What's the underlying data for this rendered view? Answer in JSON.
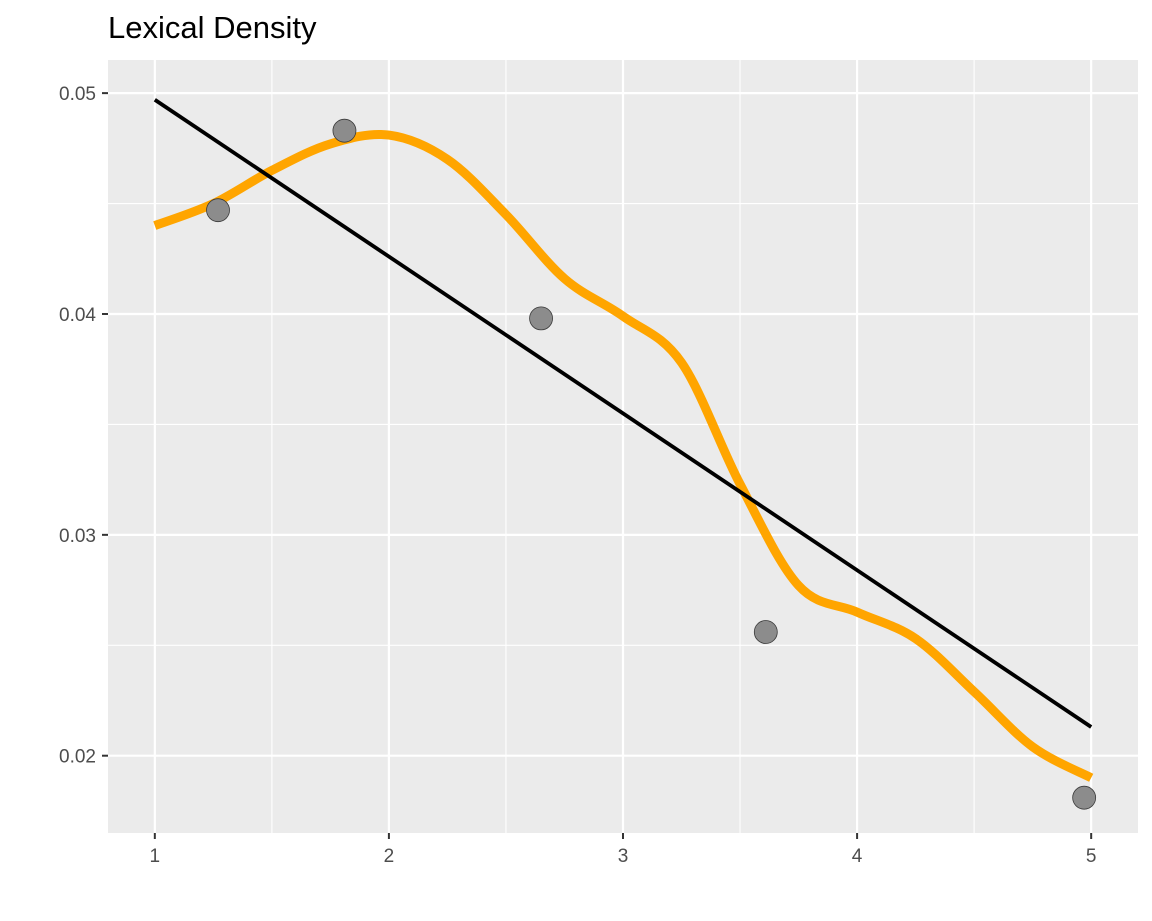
{
  "chart_data": {
    "type": "scatter",
    "title": "Lexical Density",
    "xlabel": "",
    "ylabel": "",
    "xlim": [
      0.8,
      5.2
    ],
    "ylim": [
      0.0165,
      0.0515
    ],
    "grid": true,
    "x_ticks": [
      1,
      2,
      3,
      4,
      5
    ],
    "x_tick_labels": [
      "1",
      "2",
      "3",
      "4",
      "5"
    ],
    "y_ticks": [
      0.02,
      0.03,
      0.04,
      0.05
    ],
    "y_tick_labels": [
      "0.02",
      "0.03",
      "0.04",
      "0.05"
    ],
    "points": [
      {
        "x": 1.27,
        "y": 0.0447
      },
      {
        "x": 1.81,
        "y": 0.0483
      },
      {
        "x": 2.65,
        "y": 0.0398
      },
      {
        "x": 3.61,
        "y": 0.0256
      },
      {
        "x": 4.97,
        "y": 0.0181
      }
    ],
    "linear_fit": {
      "color": "#000000",
      "x": [
        1,
        5
      ],
      "y": [
        0.0497,
        0.0213
      ]
    },
    "smooth_fit": {
      "color": "#FFA500",
      "x": [
        1.0,
        1.25,
        1.5,
        1.75,
        2.0,
        2.25,
        2.5,
        2.75,
        3.0,
        3.25,
        3.5,
        3.75,
        4.0,
        4.25,
        4.5,
        4.75,
        5.0
      ],
      "y": [
        0.044,
        0.045,
        0.0465,
        0.0477,
        0.0481,
        0.047,
        0.0445,
        0.0416,
        0.0399,
        0.0378,
        0.0323,
        0.0277,
        0.0265,
        0.0253,
        0.0229,
        0.0204,
        0.019
      ]
    }
  }
}
